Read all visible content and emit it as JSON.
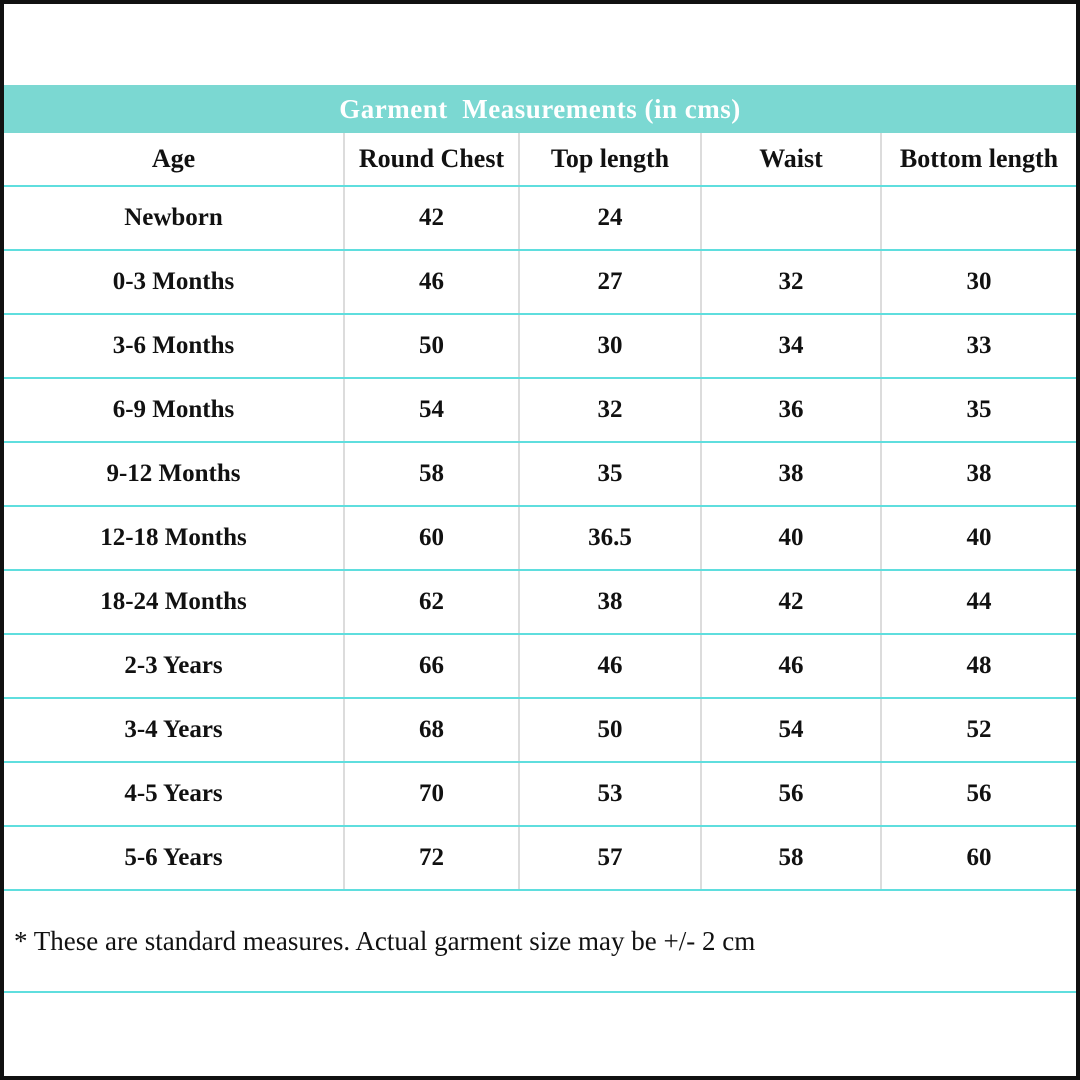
{
  "title": "Garment  Measurements (in cms)",
  "note": "* These are standard measures. Actual garment size may be +/- 2 cm",
  "colors": {
    "header_bg": "#7bd8d2",
    "title_text": "#ffffff",
    "row_line": "#5fdede",
    "column_line": "#dcdcdc",
    "outer_border": "#111111",
    "text": "#111111"
  },
  "table": {
    "column_keys": [
      "age",
      "round-chest",
      "top-length",
      "waist",
      "bottom-length"
    ],
    "columns": [
      "Age",
      "Round Chest",
      "Top length",
      "Waist",
      "Bottom length"
    ],
    "rows": [
      {
        "cells": [
          "Newborn",
          "42",
          "24",
          "",
          ""
        ]
      },
      {
        "cells": [
          "0-3 Months",
          "46",
          "27",
          "32",
          "30"
        ]
      },
      {
        "cells": [
          "3-6 Months",
          "50",
          "30",
          "34",
          "33"
        ]
      },
      {
        "cells": [
          "6-9 Months",
          "54",
          "32",
          "36",
          "35"
        ]
      },
      {
        "cells": [
          "9-12 Months",
          "58",
          "35",
          "38",
          "38"
        ]
      },
      {
        "cells": [
          "12-18 Months",
          "60",
          "36.5",
          "40",
          "40"
        ]
      },
      {
        "cells": [
          "18-24 Months",
          "62",
          "38",
          "42",
          "44"
        ]
      },
      {
        "cells": [
          "2-3 Years",
          "66",
          "46",
          "46",
          "48"
        ]
      },
      {
        "cells": [
          "3-4 Years",
          "68",
          "50",
          "54",
          "52"
        ]
      },
      {
        "cells": [
          "4-5 Years",
          "70",
          "53",
          "56",
          "56"
        ]
      },
      {
        "cells": [
          "5-6 Years",
          "72",
          "57",
          "58",
          "60"
        ]
      }
    ]
  },
  "chart_data": {
    "type": "table",
    "title": "Garment  Measurements (in cms)",
    "columns": [
      "Age",
      "Round Chest",
      "Top length",
      "Waist",
      "Bottom length"
    ],
    "rows": [
      [
        "Newborn",
        42,
        24,
        null,
        null
      ],
      [
        "0-3 Months",
        46,
        27,
        32,
        30
      ],
      [
        "3-6 Months",
        50,
        30,
        34,
        33
      ],
      [
        "6-9 Months",
        54,
        32,
        36,
        35
      ],
      [
        "9-12 Months",
        58,
        35,
        38,
        38
      ],
      [
        "12-18 Months",
        60,
        36.5,
        40,
        40
      ],
      [
        "18-24 Months",
        62,
        38,
        42,
        44
      ],
      [
        "2-3 Years",
        66,
        46,
        46,
        48
      ],
      [
        "3-4 Years",
        68,
        50,
        54,
        52
      ],
      [
        "4-5 Years",
        70,
        53,
        56,
        56
      ],
      [
        "5-6 Years",
        72,
        57,
        58,
        60
      ]
    ],
    "footnote": "* These are standard measures. Actual garment size may be +/- 2 cm",
    "units": "cm"
  }
}
